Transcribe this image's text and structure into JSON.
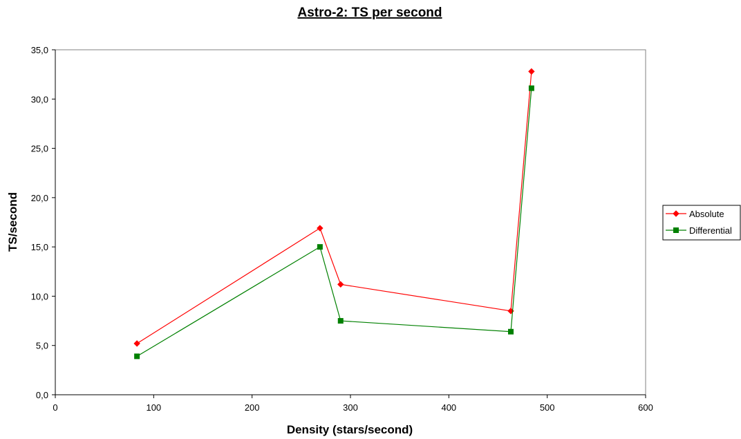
{
  "chart_data": {
    "type": "line",
    "title": "Astro-2: TS per second",
    "xlabel": "Density (stars/second)",
    "ylabel": "TS/second",
    "xlim": [
      0,
      600
    ],
    "ylim": [
      0,
      35
    ],
    "xticks": [
      0,
      100,
      200,
      300,
      400,
      500,
      600
    ],
    "xtick_labels": [
      "0",
      "100",
      "200",
      "300",
      "400",
      "500",
      "600"
    ],
    "yticks": [
      0,
      5,
      10,
      15,
      20,
      25,
      30,
      35
    ],
    "ytick_labels": [
      "0,0",
      "5,0",
      "10,0",
      "15,0",
      "20,0",
      "25,0",
      "30,0",
      "35,0"
    ],
    "grid": false,
    "legend_position": "right",
    "series": [
      {
        "name": "Absolute",
        "color": "#ff0000",
        "marker": "diamond",
        "points": [
          {
            "x": 83,
            "y": 5.2
          },
          {
            "x": 269,
            "y": 16.9
          },
          {
            "x": 290,
            "y": 11.2
          },
          {
            "x": 463,
            "y": 8.5
          },
          {
            "x": 484,
            "y": 32.8
          }
        ]
      },
      {
        "name": "Differential",
        "color": "#008000",
        "marker": "square",
        "points": [
          {
            "x": 83,
            "y": 3.9
          },
          {
            "x": 269,
            "y": 15.0
          },
          {
            "x": 290,
            "y": 7.5
          },
          {
            "x": 463,
            "y": 6.4
          },
          {
            "x": 484,
            "y": 31.1
          }
        ]
      }
    ]
  }
}
